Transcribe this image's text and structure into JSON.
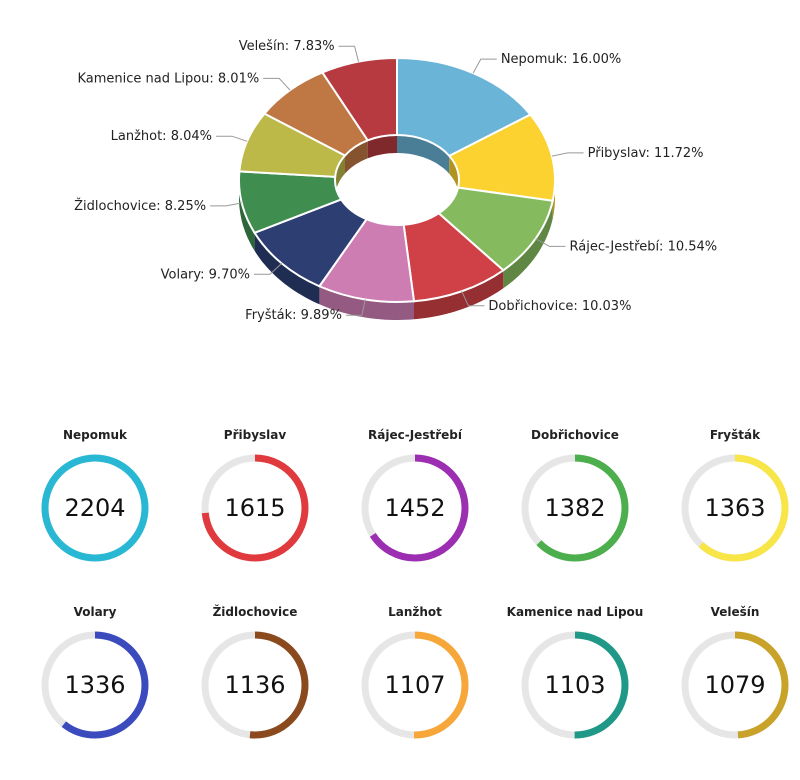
{
  "chart_data": [
    {
      "type": "pie",
      "style": "3d-donut",
      "slices": [
        {
          "label": "Nepomuk",
          "display": "Nepomuk: 16.00%",
          "percent": 16.0,
          "color": "#6ab4d8"
        },
        {
          "label": "Přibyslav",
          "display": "Přibyslav: 11.72%",
          "percent": 11.72,
          "color": "#fbd22f"
        },
        {
          "label": "Rájec-Jestřebí",
          "display": "Rájec-Jestřebí: 10.54%",
          "percent": 10.54,
          "color": "#86ba5e"
        },
        {
          "label": "Dobřichovice",
          "display": "Dobřichovice: 10.03%",
          "percent": 10.03,
          "color": "#cf4146"
        },
        {
          "label": "Fryšták",
          "display": "Fryšták: 9.89%",
          "percent": 9.89,
          "color": "#ce7db3"
        },
        {
          "label": "Volary",
          "display": "Volary: 9.70%",
          "percent": 9.7,
          "color": "#2d3e73"
        },
        {
          "label": "Židlochovice",
          "display": "Židlochovice: 8.25%",
          "percent": 8.25,
          "color": "#3f8d4f"
        },
        {
          "label": "Lanžhot",
          "display": "Lanžhot: 8.04%",
          "percent": 8.04,
          "color": "#bcb948"
        },
        {
          "label": "Kamenice nad Lipou",
          "display": "Kamenice nad Lipou: 8.01%",
          "percent": 8.01,
          "color": "#bf7743"
        },
        {
          "label": "Velešín",
          "display": "Velešín: 7.83%",
          "percent": 7.83,
          "color": "#b63a3f"
        }
      ]
    },
    {
      "type": "gauge",
      "max": 2204,
      "items": [
        {
          "label": "Nepomuk",
          "value": 2204,
          "color": "#29b8d4"
        },
        {
          "label": "Přibyslav",
          "value": 1615,
          "color": "#e03a3e"
        },
        {
          "label": "Rájec-Jestřebí",
          "value": 1452,
          "color": "#9c2eb1"
        },
        {
          "label": "Dobřichovice",
          "value": 1382,
          "color": "#4cae4c"
        },
        {
          "label": "Fryšták",
          "value": 1363,
          "color": "#f8e548"
        },
        {
          "label": "Volary",
          "value": 1336,
          "color": "#3b4bbd"
        },
        {
          "label": "Židlochovice",
          "value": 1136,
          "color": "#8a4a1e"
        },
        {
          "label": "Lanžhot",
          "value": 1107,
          "color": "#f7a63a"
        },
        {
          "label": "Kamenice nad Lipou",
          "value": 1103,
          "color": "#1f9887"
        },
        {
          "label": "Velešín",
          "value": 1079,
          "color": "#c9a22a"
        }
      ]
    }
  ]
}
